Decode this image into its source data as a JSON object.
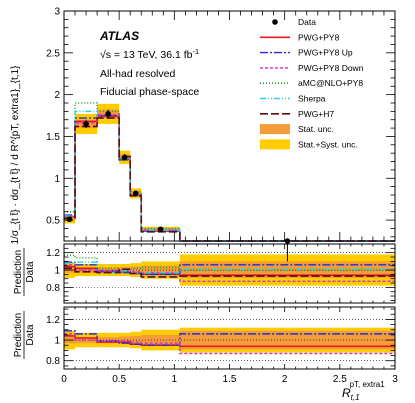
{
  "chart_data": {
    "type": "line",
    "title": "",
    "annotations": {
      "experiment": "ATLAS",
      "energy_prefix": "√s = 13 TeV, 36.1 fb",
      "energy_sup": "-1",
      "selection": "All-had resolved",
      "phase_space": "Fiducial phase-space"
    },
    "xlabel": {
      "main": "R",
      "sub": "t,1",
      "sup": "pT, extra1"
    },
    "ylabel": "1/σ_{t t̄} · dσ_{t t̄} / d R^{pT, extra1}_{t,1}",
    "ratio_ylabel": {
      "top": "Prediction",
      "bottom": "Data"
    },
    "xlim": [
      0,
      3
    ],
    "xticks": [
      0,
      0.5,
      1,
      1.5,
      2,
      2.5,
      3
    ],
    "xtick_labels": [
      "0",
      "0.5",
      "1",
      "1.5",
      "2",
      "2.5",
      "3"
    ],
    "bin_edges": [
      0.0,
      0.1,
      0.3,
      0.5,
      0.6,
      0.7,
      1.05,
      3.0
    ],
    "main_panel": {
      "ylim": [
        0.25,
        3.0
      ],
      "yticks": [
        0.5,
        1,
        1.5,
        2,
        2.5,
        3
      ],
      "ytick_labels": [
        "0.5",
        "1",
        "1.5",
        "2",
        "2.5",
        "3"
      ],
      "data": [
        0.51,
        1.65,
        1.77,
        1.25,
        0.82,
        0.39,
        0.005
      ],
      "stat_unc": [
        0.02,
        0.05,
        0.05,
        0.04,
        0.03,
        0.015,
        0.0004
      ],
      "syst_unc": [
        0.05,
        0.12,
        0.12,
        0.08,
        0.06,
        0.03,
        0.0008
      ]
    },
    "ratio_panels": [
      {
        "ylim": [
          0.62,
          1.3
        ],
        "yticks": [
          0.8,
          1,
          1.2
        ],
        "ytick_labels": [
          "0.8",
          "1",
          "1.2"
        ],
        "stat_half": [
          0.03,
          0.03,
          0.03,
          0.035,
          0.04,
          0.05,
          0.09
        ],
        "syst_half": [
          0.09,
          0.07,
          0.07,
          0.07,
          0.08,
          0.1,
          0.18
        ],
        "models": [
          0,
          1,
          2,
          3,
          4,
          5
        ]
      },
      {
        "ylim": [
          0.72,
          1.32
        ],
        "yticks": [
          0.8,
          1,
          1.2
        ],
        "ytick_labels": [
          "0.8",
          "1",
          "1.2"
        ],
        "stat_half": [
          0.03,
          0.03,
          0.03,
          0.035,
          0.04,
          0.05,
          0.09
        ],
        "syst_half": [
          0.09,
          0.07,
          0.07,
          0.07,
          0.08,
          0.1,
          0.12
        ],
        "models": [
          0,
          1,
          2
        ]
      }
    ],
    "series": [
      {
        "name": "PWG+PY8",
        "color": "#e8191c",
        "dash": "",
        "width": 1.6,
        "main": [
          0.54,
          1.68,
          1.74,
          1.23,
          0.8,
          0.37,
          0.005
        ],
        "ratio": [
          1.04,
          1.02,
          0.98,
          0.98,
          0.96,
          0.95,
          0.94
        ]
      },
      {
        "name": "PWG+PY8 Up",
        "color": "#1f2fd6",
        "dash": "8,2,2,2",
        "width": 1.4,
        "main": [
          0.56,
          1.72,
          1.75,
          1.22,
          0.79,
          0.37,
          0.005
        ],
        "ratio": [
          1.09,
          1.06,
          0.99,
          0.97,
          0.96,
          0.95,
          1.06
        ]
      },
      {
        "name": "PWG+PY8 Down",
        "color": "#cc33cc",
        "dash": "3,2",
        "width": 1.4,
        "main": [
          0.55,
          1.66,
          1.76,
          1.24,
          0.8,
          0.38,
          0.005
        ],
        "ratio": [
          1.06,
          1.0,
          0.99,
          0.99,
          0.98,
          0.97,
          0.87
        ]
      },
      {
        "name": "aMC@NLO+PY8",
        "color": "#27a32b",
        "dash": "1,2",
        "width": 1.6,
        "main": [
          0.6,
          1.9,
          1.8,
          1.22,
          0.84,
          0.4,
          0.005
        ],
        "ratio": [
          1.17,
          1.14,
          1.02,
          0.98,
          1.02,
          1.03,
          1.0
        ]
      },
      {
        "name": "Sherpa",
        "color": "#27d6e0",
        "dash": "6,2,1,2,1,2",
        "width": 1.4,
        "main": [
          0.55,
          1.8,
          1.72,
          1.24,
          0.79,
          0.38,
          0.005
        ],
        "ratio": [
          1.08,
          1.09,
          0.97,
          0.99,
          0.96,
          0.97,
          1.01
        ]
      },
      {
        "name": "PWG+H7",
        "color": "#5a0f14",
        "dash": "8,3",
        "width": 1.6,
        "main": [
          0.52,
          1.62,
          1.72,
          1.26,
          0.79,
          0.36,
          0.005
        ],
        "ratio": [
          1.02,
          0.98,
          0.97,
          1.01,
          0.96,
          0.92,
          0.93
        ]
      }
    ],
    "data_label": "Data",
    "stat_label": "Stat. unc.",
    "syst_label": "Stat.+Syst. unc.",
    "stat_color": "#f39c39",
    "syst_color": "#ffcc00"
  }
}
